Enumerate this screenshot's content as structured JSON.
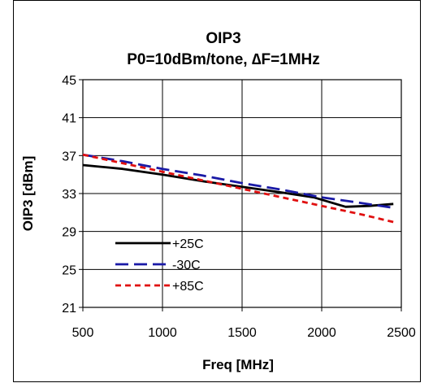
{
  "chart_data": {
    "type": "line",
    "title": "OIP3",
    "subtitle": "P0=10dBm/tone, ∆F=1MHz",
    "xlabel": "Freq [MHz]",
    "ylabel": "OIP3 [dBm]",
    "xlim": [
      500,
      2500
    ],
    "ylim": [
      21,
      45
    ],
    "xticks": [
      500,
      1000,
      1500,
      2000,
      2500
    ],
    "yticks": [
      21,
      25,
      29,
      33,
      37,
      41,
      45
    ],
    "xtick_labels": [
      "500",
      "1000",
      "1500",
      "2000",
      "2500"
    ],
    "ytick_labels": [
      "21",
      "25",
      "29",
      "33",
      "37",
      "41",
      "45"
    ],
    "grid": true,
    "legend_position": "bottom-left",
    "series": [
      {
        "name": "+25C",
        "color": "#000000",
        "dash": "solid",
        "x": [
          500,
          750,
          1000,
          1250,
          1500,
          1750,
          1950,
          2150,
          2300,
          2450
        ],
        "y": [
          36.0,
          35.6,
          35.0,
          34.3,
          33.7,
          33.1,
          32.6,
          31.6,
          31.7,
          31.9
        ]
      },
      {
        "name": "-30C",
        "color": "#1a1aa6",
        "dash": "long-dash",
        "x": [
          500,
          750,
          1000,
          1250,
          1500,
          1750,
          2000,
          2250,
          2450
        ],
        "y": [
          37.1,
          36.4,
          35.6,
          34.9,
          34.1,
          33.4,
          32.6,
          32.0,
          31.5
        ]
      },
      {
        "name": "+85C",
        "color": "#e01010",
        "dash": "short-dash",
        "x": [
          500,
          750,
          1000,
          1250,
          1500,
          1750,
          2000,
          2250,
          2450
        ],
        "y": [
          37.1,
          36.2,
          35.3,
          34.4,
          33.5,
          32.6,
          31.7,
          30.8,
          30.0
        ]
      }
    ]
  }
}
